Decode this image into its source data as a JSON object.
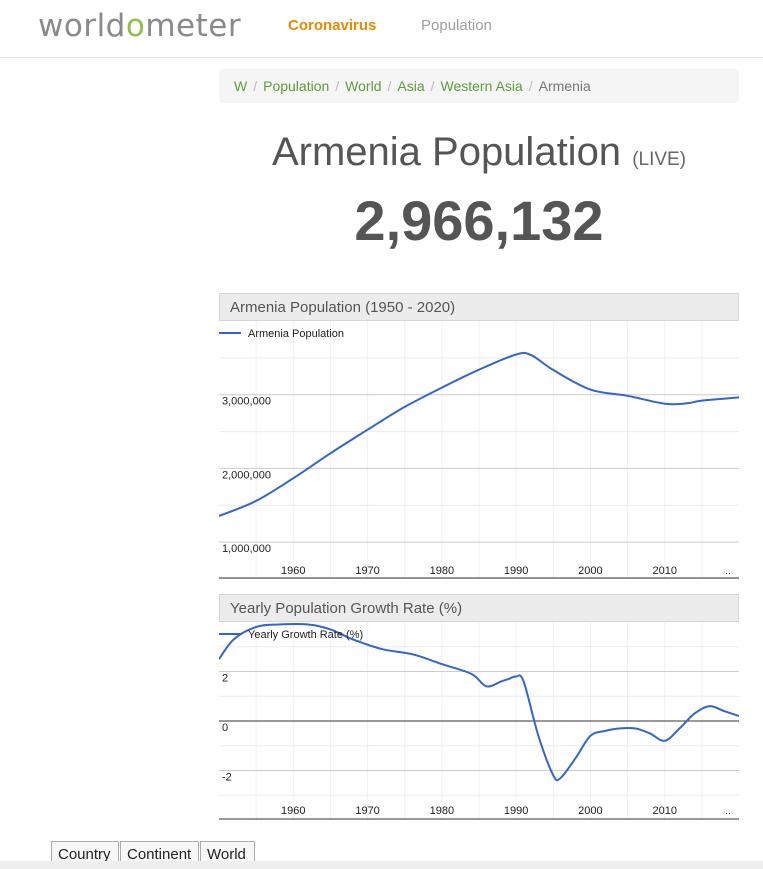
{
  "header": {
    "logo_left": "world",
    "logo_o": "o",
    "logo_right": "meter",
    "nav": [
      "Coronavirus",
      "Population"
    ]
  },
  "breadcrumb": {
    "items": [
      "W",
      "Population",
      "World",
      "Asia",
      "Western Asia"
    ],
    "current": "Armenia",
    "separator": "/"
  },
  "title": {
    "text": "Armenia Population",
    "live": "(LIVE)"
  },
  "counter": "2,966,132",
  "charts": [
    {
      "header": "Armenia Population (1950 - 2020)",
      "legend": "Armenia Population",
      "color": "#3366cc"
    },
    {
      "header": "Yearly Population Growth Rate (%)",
      "legend": "Yearly Growth Rate (%)",
      "color": "#3366cc"
    }
  ],
  "chart_data": [
    {
      "type": "line",
      "title": "Armenia Population (1950 - 2020)",
      "series": [
        {
          "name": "Armenia Population",
          "x": [
            1950,
            1955,
            1960,
            1965,
            1970,
            1975,
            1980,
            1985,
            1990,
            1992,
            1995,
            2000,
            2005,
            2010,
            2013,
            2015,
            2020
          ],
          "y": [
            1354000,
            1560000,
            1867000,
            2205000,
            2525000,
            2835000,
            3096000,
            3339000,
            3545000,
            3538000,
            3335000,
            3070000,
            2985000,
            2878000,
            2883000,
            2920000,
            2964000
          ]
        }
      ],
      "x_ticks": [
        "1960",
        "1970",
        "1980",
        "1990",
        "2000",
        "2010",
        ".."
      ],
      "y_ticks": [
        "1,000,000",
        "2,000,000",
        "3,000,000"
      ],
      "ylim": [
        500000,
        4000000
      ],
      "xlim": [
        1950,
        2020
      ],
      "grid": true,
      "legend": "top-left"
    },
    {
      "type": "line",
      "title": "Yearly Population Growth Rate (%)",
      "series": [
        {
          "name": "Yearly Growth Rate (%)",
          "x": [
            1950,
            1952,
            1955,
            1958,
            1962,
            1965,
            1968,
            1972,
            1976,
            1980,
            1984,
            1986,
            1988,
            1989,
            1990,
            1991,
            1993,
            1995,
            1996,
            1998,
            2000,
            2002,
            2004,
            2006,
            2008,
            2010,
            2012,
            2014,
            2016,
            2018,
            2020
          ],
          "y": [
            2.5,
            3.3,
            3.8,
            3.9,
            3.9,
            3.7,
            3.3,
            2.9,
            2.7,
            2.3,
            1.9,
            1.4,
            1.6,
            1.7,
            1.8,
            1.6,
            -0.6,
            -2.2,
            -2.3,
            -1.5,
            -0.6,
            -0.4,
            -0.3,
            -0.3,
            -0.5,
            -0.8,
            -0.3,
            0.3,
            0.6,
            0.4,
            0.2
          ]
        }
      ],
      "x_ticks": [
        "1960",
        "1970",
        "1980",
        "1990",
        "2000",
        "2010",
        ".."
      ],
      "y_ticks": [
        "-2",
        "0",
        "2"
      ],
      "ylim": [
        -4,
        4
      ],
      "xlim": [
        1950,
        2020
      ],
      "grid": true,
      "legend": "top-left"
    }
  ],
  "tabs": [
    "Country",
    "Continent",
    "World"
  ]
}
